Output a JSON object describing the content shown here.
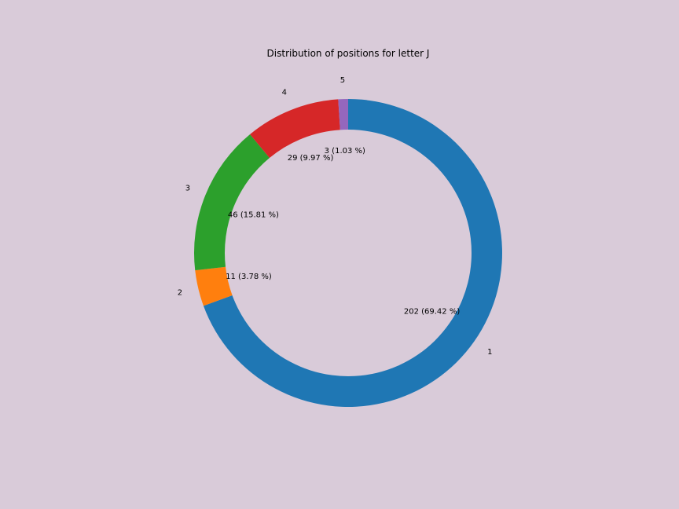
{
  "chart_data": {
    "type": "pie",
    "style": "donut",
    "title": "Distribution of positions for letter J",
    "background_color": "#d9cbd9",
    "start": "top",
    "direction": "clockwise",
    "slices": [
      {
        "label": "1",
        "value": 202,
        "text": "202 (69.42 %)",
        "color": "#1f77b4"
      },
      {
        "label": "2",
        "value": 11,
        "text": "11 (3.78 %)",
        "color": "#ff7f0e"
      },
      {
        "label": "3",
        "value": 46,
        "text": "46 (15.81 %)",
        "color": "#2ca02c"
      },
      {
        "label": "4",
        "value": 29,
        "text": "29 (9.97 %)",
        "color": "#d62728"
      },
      {
        "label": "5",
        "value": 3,
        "text": "3 (1.03 %)",
        "color": "#9467bd"
      }
    ]
  }
}
